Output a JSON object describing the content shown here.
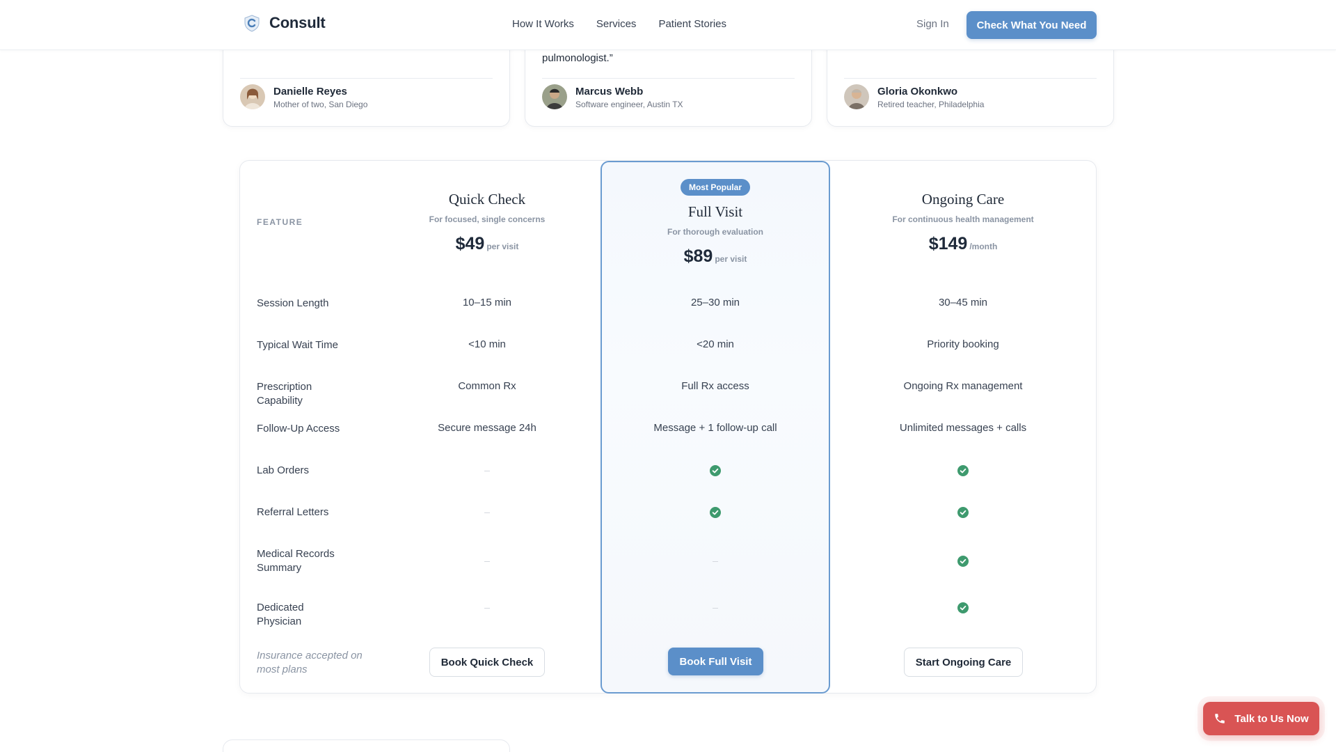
{
  "header": {
    "brand": "Consult",
    "nav": [
      "How It Works",
      "Services",
      "Patient Stories"
    ],
    "sign_in": "Sign In",
    "cta": "Check What You Need"
  },
  "testimonials": [
    {
      "quote_tail": "",
      "name": "Danielle Reyes",
      "role": "Mother of two, San Diego"
    },
    {
      "quote_tail": "pulmonologist.”",
      "name": "Marcus Webb",
      "role": "Software engineer, Austin TX"
    },
    {
      "quote_tail": "",
      "name": "Gloria Okonkwo",
      "role": "Retired teacher, Philadelphia"
    }
  ],
  "pricing": {
    "feature_header": "FEATURE",
    "badge": "Most Popular",
    "plans": [
      {
        "name": "Quick Check",
        "subtitle": "For focused, single concerns",
        "price": "$49",
        "unit": "per visit",
        "button": "Book Quick Check"
      },
      {
        "name": "Full Visit",
        "subtitle": "For thorough evaluation",
        "price": "$89",
        "unit": "per visit",
        "button": "Book Full Visit"
      },
      {
        "name": "Ongoing Care",
        "subtitle": "For continuous health management",
        "price": "$149",
        "unit": "/month",
        "button": "Start Ongoing Care"
      }
    ],
    "rows": [
      {
        "label": "Session Length",
        "values": [
          "10–15 min",
          "25–30 min",
          "30–45 min"
        ]
      },
      {
        "label": "Typical Wait Time",
        "values": [
          "<10 min",
          "<20 min",
          "Priority booking"
        ]
      },
      {
        "label": "Prescription Capability",
        "values": [
          "Common Rx",
          "Full Rx access",
          "Ongoing Rx management"
        ]
      },
      {
        "label": "Follow-Up Access",
        "values": [
          "Secure message 24h",
          "Message + 1 follow-up call",
          "Unlimited messages + calls"
        ]
      },
      {
        "label": "Lab Orders",
        "values": [
          "none",
          "check",
          "check"
        ]
      },
      {
        "label": "Referral Letters",
        "values": [
          "none",
          "check",
          "check"
        ]
      },
      {
        "label": "Medical Records Summary",
        "values": [
          "none",
          "none",
          "check"
        ]
      },
      {
        "label": "Dedicated Physician",
        "values": [
          "none",
          "none",
          "check"
        ]
      }
    ],
    "insurance_note": "Insurance accepted on most plans"
  },
  "floating": {
    "talk_button": "Talk to Us Now"
  },
  "colors": {
    "accent": "#5b8fc9",
    "check": "#3e9a6e",
    "alert": "#d95454"
  }
}
